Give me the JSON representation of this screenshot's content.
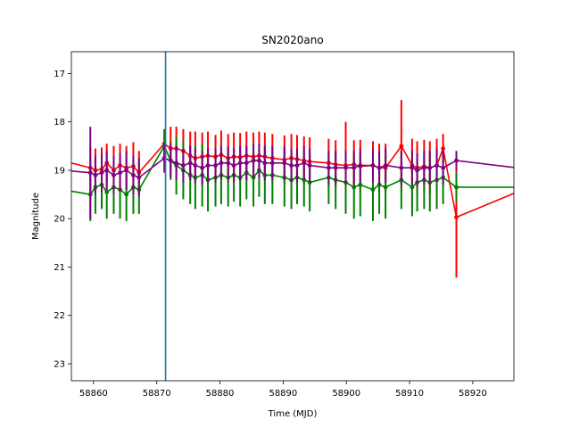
{
  "chart_data": {
    "type": "line",
    "title": "SN2020ano",
    "xlabel": "Time (MJD)",
    "ylabel": "Magnitude",
    "xlim": [
      58856.5,
      58926.5
    ],
    "ylim": [
      23.35,
      16.55
    ],
    "y_inverted": true,
    "grid": false,
    "x_ticks": [
      58860,
      58870,
      58880,
      58890,
      58900,
      58910,
      58920
    ],
    "y_ticks": [
      17,
      18,
      19,
      20,
      21,
      22,
      23
    ],
    "vline": {
      "x": 58871.4,
      "color": "#1f77b4"
    },
    "series": [
      {
        "color": "#ff0000",
        "x": [
          58855,
          58859.5,
          58860.3,
          58861.3,
          58862.1,
          58863.2,
          58864.2,
          58865.2,
          58866.3,
          58867.2,
          58871.2,
          58872.2,
          58873.1,
          58874.2,
          58875.3,
          58876.1,
          58877.2,
          58878.1,
          58879.3,
          58880.2,
          58881.3,
          58882.2,
          58883.2,
          58884.2,
          58885.3,
          58886.2,
          58887.1,
          58888.3,
          58890.2,
          58891.3,
          58892.2,
          58893.3,
          58894.2,
          58897.2,
          58898.3,
          58899.9,
          58901.2,
          58902.2,
          58904.2,
          58905.2,
          58906.2,
          58908.7,
          58910.4,
          58911.2,
          58912.3,
          58913.2,
          58914.3,
          58915.3,
          58917.4,
          58927
        ],
        "y": [
          18.8,
          18.95,
          19.0,
          18.98,
          18.85,
          19.0,
          18.9,
          18.95,
          18.92,
          19.05,
          18.45,
          18.55,
          18.55,
          18.6,
          18.7,
          18.75,
          18.72,
          18.7,
          18.72,
          18.68,
          18.75,
          18.72,
          18.73,
          18.7,
          18.72,
          18.7,
          18.72,
          18.75,
          18.78,
          18.75,
          18.77,
          18.8,
          18.82,
          18.85,
          18.88,
          18.9,
          18.88,
          18.92,
          18.9,
          18.95,
          18.95,
          18.5,
          18.9,
          18.95,
          18.92,
          18.95,
          18.9,
          18.55,
          19.97,
          19.45
        ],
        "yerr": [
          0.35,
          0.45,
          0.45,
          0.45,
          0.4,
          0.5,
          0.45,
          0.45,
          0.5,
          0.45,
          0.3,
          0.45,
          0.45,
          0.45,
          0.5,
          0.55,
          0.5,
          0.5,
          0.45,
          0.5,
          0.5,
          0.5,
          0.5,
          0.5,
          0.5,
          0.5,
          0.5,
          0.5,
          0.5,
          0.5,
          0.5,
          0.5,
          0.5,
          0.5,
          0.5,
          0.9,
          0.5,
          0.55,
          0.5,
          0.5,
          0.5,
          0.95,
          0.55,
          0.55,
          0.55,
          0.55,
          0.55,
          0.3,
          1.25,
          0.3
        ]
      },
      {
        "color": "#008000",
        "x": [
          58855,
          58859.5,
          58860.3,
          58861.3,
          58862.1,
          58863.2,
          58864.2,
          58865.2,
          58866.3,
          58867.2,
          58871.2,
          58872.2,
          58873.1,
          58874.2,
          58875.3,
          58876.1,
          58877.2,
          58878.1,
          58879.3,
          58880.2,
          58881.3,
          58882.2,
          58883.2,
          58884.2,
          58885.3,
          58886.2,
          58887.1,
          58888.3,
          58890.2,
          58891.3,
          58892.2,
          58893.3,
          58894.2,
          58897.2,
          58898.3,
          58899.9,
          58901.2,
          58902.2,
          58904.2,
          58905.2,
          58906.2,
          58908.7,
          58910.4,
          58911.2,
          58912.3,
          58913.2,
          58914.3,
          58915.3,
          58917.4,
          58927
        ],
        "y": [
          19.4,
          19.5,
          19.35,
          19.3,
          19.45,
          19.35,
          19.4,
          19.5,
          19.35,
          19.4,
          18.5,
          18.8,
          18.9,
          19.0,
          19.1,
          19.15,
          19.1,
          19.2,
          19.15,
          19.1,
          19.15,
          19.1,
          19.15,
          19.05,
          19.15,
          19.0,
          19.1,
          19.1,
          19.15,
          19.2,
          19.15,
          19.2,
          19.25,
          19.15,
          19.2,
          19.25,
          19.35,
          19.3,
          19.4,
          19.3,
          19.35,
          19.2,
          19.35,
          19.25,
          19.2,
          19.25,
          19.2,
          19.15,
          19.35,
          19.35
        ],
        "yerr": [
          0.35,
          0.55,
          0.55,
          0.5,
          0.55,
          0.55,
          0.6,
          0.55,
          0.55,
          0.5,
          0.35,
          0.4,
          0.6,
          0.6,
          0.6,
          0.65,
          0.65,
          0.65,
          0.6,
          0.6,
          0.6,
          0.55,
          0.6,
          0.55,
          0.6,
          0.55,
          0.6,
          0.6,
          0.6,
          0.6,
          0.55,
          0.55,
          0.6,
          0.55,
          0.6,
          0.65,
          0.65,
          0.65,
          0.65,
          0.6,
          0.65,
          0.6,
          0.6,
          0.6,
          0.6,
          0.6,
          0.6,
          0.55,
          0.3,
          0.3
        ]
      },
      {
        "color": "#800080",
        "x": [
          58855,
          58859.5,
          58860.3,
          58861.3,
          58862.1,
          58863.2,
          58864.2,
          58865.2,
          58866.3,
          58867.2,
          58871.2,
          58872.2,
          58873.1,
          58874.2,
          58875.3,
          58876.1,
          58877.2,
          58878.1,
          58879.3,
          58880.2,
          58881.3,
          58882.2,
          58883.2,
          58884.2,
          58885.3,
          58886.2,
          58887.1,
          58888.3,
          58890.2,
          58891.3,
          58892.2,
          58893.3,
          58894.2,
          58897.2,
          58898.3,
          58899.9,
          58901.2,
          58902.2,
          58904.2,
          58905.2,
          58906.2,
          58908.7,
          58910.4,
          58911.2,
          58912.3,
          58913.2,
          58914.3,
          58915.3,
          58917.4,
          58927
        ],
        "y": [
          19.0,
          19.05,
          19.1,
          19.05,
          19.0,
          19.1,
          19.05,
          19.0,
          19.1,
          19.15,
          18.75,
          18.8,
          18.85,
          18.9,
          18.85,
          18.9,
          18.95,
          18.9,
          18.9,
          18.85,
          18.85,
          18.9,
          18.85,
          18.85,
          18.8,
          18.8,
          18.85,
          18.85,
          18.85,
          18.9,
          18.9,
          18.85,
          18.9,
          18.95,
          18.95,
          18.95,
          18.95,
          18.9,
          18.9,
          18.95,
          18.9,
          18.95,
          18.95,
          19.0,
          18.95,
          18.95,
          18.9,
          18.95,
          18.8,
          18.95
        ],
        "yerr": [
          0.3,
          0.95,
          0.4,
          0.4,
          0.4,
          0.4,
          0.4,
          0.4,
          0.4,
          0.4,
          0.3,
          0.35,
          0.35,
          0.35,
          0.35,
          0.35,
          0.35,
          0.35,
          0.35,
          0.35,
          0.35,
          0.35,
          0.35,
          0.35,
          0.35,
          0.35,
          0.35,
          0.35,
          0.35,
          0.35,
          0.35,
          0.35,
          0.35,
          0.35,
          0.35,
          0.35,
          0.35,
          0.35,
          0.35,
          0.35,
          0.35,
          0.35,
          0.35,
          0.35,
          0.35,
          0.35,
          0.35,
          0.35,
          0.2,
          0.2
        ]
      }
    ]
  }
}
